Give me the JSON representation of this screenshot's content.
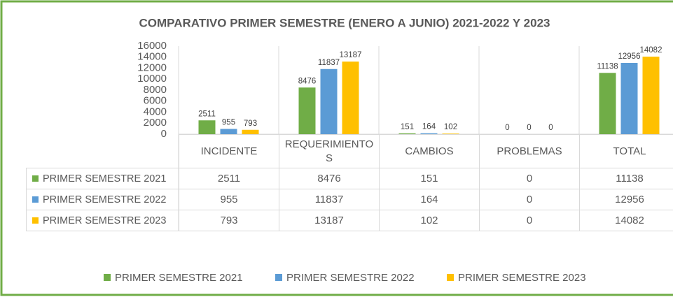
{
  "chart_data": {
    "type": "bar",
    "title": "COMPARATIVO PRIMER SEMESTRE (ENERO A JUNIO) 2021-2022 Y 2023",
    "categories": [
      "INCIDENTE",
      "REQUERIMIENTOS",
      "CAMBIOS",
      "PROBLEMAS",
      "TOTAL"
    ],
    "series": [
      {
        "name": "PRIMER SEMESTRE 2021",
        "color": "#70ad47",
        "values": [
          2511,
          8476,
          151,
          0,
          11138
        ]
      },
      {
        "name": "PRIMER SEMESTRE 2022",
        "color": "#5b9bd5",
        "values": [
          955,
          11837,
          164,
          0,
          12956
        ]
      },
      {
        "name": "PRIMER SEMESTRE 2023",
        "color": "#ffc000",
        "values": [
          793,
          13187,
          102,
          0,
          14082
        ]
      }
    ],
    "ylim": [
      0,
      16000
    ],
    "yticks": [
      0,
      2000,
      4000,
      6000,
      8000,
      10000,
      12000,
      14000,
      16000
    ],
    "grid": false,
    "legend": "bottom"
  }
}
